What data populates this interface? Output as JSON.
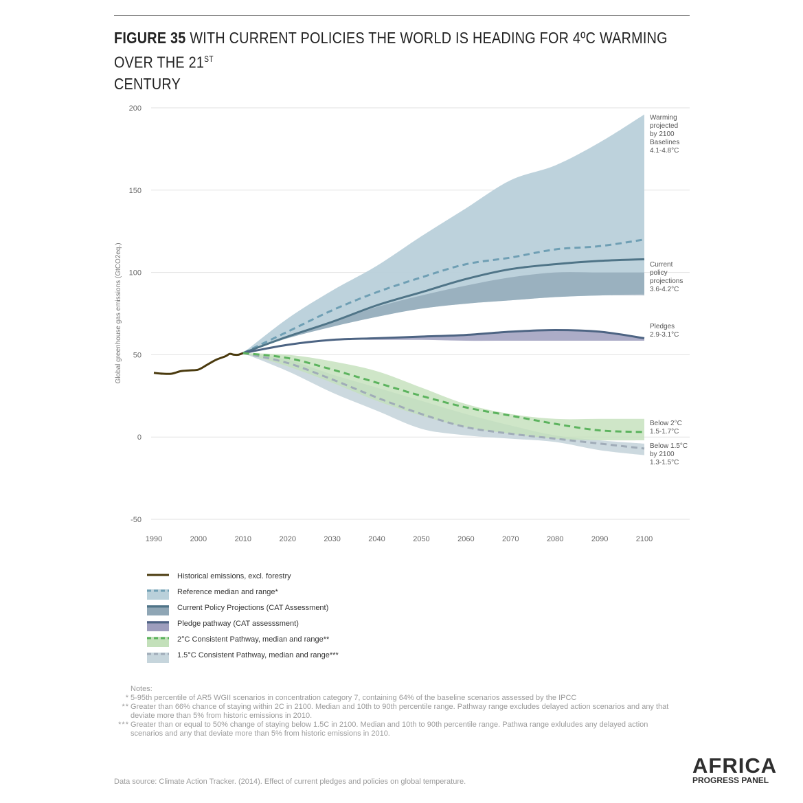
{
  "header": {
    "figure_label": "FIGURE 35",
    "title_main": "WITH CURRENT POLICIES THE WORLD IS HEADING FOR 4ºC WARMING OVER THE 21",
    "title_sup": "ST",
    "title_line2": "CENTURY"
  },
  "chart_data": {
    "type": "area",
    "ylabel": "Global greenhouse gas emissions (GtCO2eq.)",
    "xlabel": "",
    "x_ticks": [
      1990,
      2000,
      2010,
      2020,
      2030,
      2040,
      2050,
      2060,
      2070,
      2080,
      2090,
      2100
    ],
    "y_ticks": [
      200,
      150,
      100,
      50,
      0,
      -50
    ],
    "xlim": [
      1990,
      2100
    ],
    "ylim": [
      -50,
      200
    ],
    "grid": "horizontal",
    "colors": {
      "historical": "#4a3a0e",
      "reference_band": "#b9d0da",
      "reference_line": "#6f9fb4",
      "cpp_band": "#8fa6b5",
      "cpp_line": "#4f7487",
      "pledge_band": "#9e9dbd",
      "pledge_line": "#4d6483",
      "two_deg_band": "#c3e0ba",
      "two_deg_line": "#5cb35e",
      "onefive_band": "#c6d5dc",
      "onefive_line": "#a0acb8"
    },
    "series": [
      {
        "key": "historical",
        "name": "Historical emissions, excl. forestry",
        "x": [
          1990,
          1992,
          1994,
          1996,
          1998,
          2000,
          2002,
          2004,
          2006,
          2007,
          2008,
          2009,
          2010
        ],
        "y": [
          39,
          38.5,
          38.5,
          40,
          40.5,
          41,
          44,
          47,
          49,
          50.5,
          50,
          50,
          51
        ]
      },
      {
        "key": "reference",
        "name": "Reference median and range*",
        "x": [
          2010,
          2020,
          2030,
          2040,
          2050,
          2060,
          2070,
          2080,
          2090,
          2100
        ],
        "median": [
          51,
          64,
          77,
          88,
          97,
          105,
          109,
          114,
          116,
          120
        ],
        "low": [
          51,
          60,
          67,
          73,
          78,
          81,
          83,
          85,
          86,
          87
        ],
        "high": [
          51,
          72,
          89,
          104,
          122,
          139,
          156,
          165,
          179,
          196
        ]
      },
      {
        "key": "cpp",
        "name": "Current Policy Projections (CAT Assessment)",
        "x": [
          2010,
          2020,
          2030,
          2040,
          2050,
          2060,
          2070,
          2080,
          2090,
          2100
        ],
        "median": [
          51,
          61,
          70,
          80,
          88,
          96,
          102,
          105,
          107,
          108
        ],
        "low": [
          51,
          60,
          67,
          73,
          78,
          81,
          83,
          85,
          86,
          86
        ],
        "high": [
          51,
          61,
          70,
          79,
          86,
          92,
          97,
          100,
          100,
          100
        ]
      },
      {
        "key": "pledge",
        "name": "Pledge pathway (CAT assesssment)",
        "x": [
          2010,
          2020,
          2030,
          2040,
          2050,
          2060,
          2070,
          2080,
          2090,
          2100
        ],
        "median": [
          51,
          56,
          59,
          60,
          61,
          62,
          64,
          65,
          64,
          60
        ],
        "low": [
          51,
          56,
          59,
          59,
          59,
          58.5,
          58.5,
          58.5,
          58.5,
          58.5
        ],
        "high": [
          51,
          56,
          59,
          60,
          61,
          62,
          64,
          65,
          64,
          60
        ]
      },
      {
        "key": "two_deg",
        "name": "2°C Consistent Pathway, median and range**",
        "x": [
          2010,
          2020,
          2030,
          2040,
          2050,
          2060,
          2070,
          2080,
          2090,
          2100
        ],
        "median": [
          51,
          48,
          41,
          33,
          25,
          18,
          13,
          8,
          4,
          3
        ],
        "low": [
          51,
          43,
          33,
          22,
          13,
          6,
          2,
          -1,
          -2,
          -2
        ],
        "high": [
          51,
          50,
          46,
          40,
          30,
          20,
          14,
          11,
          11,
          11
        ]
      },
      {
        "key": "onefive",
        "name": "1.5°C Consistent Pathway, median and range***",
        "x": [
          2010,
          2020,
          2030,
          2040,
          2050,
          2060,
          2070,
          2080,
          2090,
          2100
        ],
        "median": [
          51,
          45,
          35,
          24,
          14,
          6,
          2,
          -1,
          -4,
          -7
        ],
        "low": [
          51,
          40,
          27,
          16,
          5,
          1,
          -1,
          -3,
          -8,
          -11
        ],
        "high": [
          51,
          47,
          38,
          30,
          22,
          14,
          7,
          1,
          -2,
          -4
        ]
      }
    ],
    "annotations": [
      {
        "key": "baselines",
        "lines": [
          "Warming",
          "projected",
          "by 2100",
          "",
          "Baselines",
          "4.1-4.8°C"
        ]
      },
      {
        "key": "current_policy",
        "lines": [
          "Current",
          "policy",
          "projections",
          "3.6-4.2°C"
        ]
      },
      {
        "key": "pledges",
        "lines": [
          "Pledges",
          "2.9-3.1°C"
        ]
      },
      {
        "key": "below2",
        "lines": [
          "Below 2°C",
          "1.5-1.7°C"
        ]
      },
      {
        "key": "below15",
        "lines": [
          "Below 1.5°C",
          "by 2100",
          "1.3-1.5°C"
        ]
      }
    ]
  },
  "legend": [
    {
      "label": "Historical emissions, excl. forestry",
      "style": "solid",
      "line": "#4a3a0e",
      "band": ""
    },
    {
      "label": "Reference median and range*",
      "style": "dashed",
      "line": "#6f9fb4",
      "band": "#b9d0da"
    },
    {
      "label": "Current Policy Projections (CAT Assessment)",
      "style": "solid",
      "line": "#4f7487",
      "band": "#8fa6b5"
    },
    {
      "label": "Pledge pathway (CAT assesssment)",
      "style": "solid",
      "line": "#4d6483",
      "band": "#9e9dbd"
    },
    {
      "label": "2°C Consistent Pathway, median and range**",
      "style": "dashed",
      "line": "#5cb35e",
      "band": "#c3e0ba"
    },
    {
      "label": "1.5°C Consistent Pathway, median and range***",
      "style": "dashed",
      "line": "#a0acb8",
      "band": "#c6d5dc"
    }
  ],
  "notes": {
    "heading": "Notes:",
    "items": [
      {
        "mark": "*",
        "text": "5-95th percentile of AR5 WGII scenarios in concentration category 7, containing 64% of the baseline scenarios assessed by the IPCC"
      },
      {
        "mark": "**",
        "text": "Greater than 66% chance of staying within 2C in 2100. Median and 10th to 90th percentile range. Pathway range excludes delayed action scenarios and any that deviate more than 5% from historic emissions in 2010."
      },
      {
        "mark": "***",
        "text": "Greater than or equal to 50% change of staying below 1.5C in 2100. Median and 10th to 90th percentile range. Pathwa range exluludes any delayed action scenarios and any that deviate more than 5% from historic emissions in 2010."
      }
    ]
  },
  "source": "Data source: Climate Action Tracker. (2014). Effect of current pledges and policies on global temperature.",
  "logo": {
    "line1": "AFRICA",
    "line2": "PROGRESS PANEL"
  }
}
